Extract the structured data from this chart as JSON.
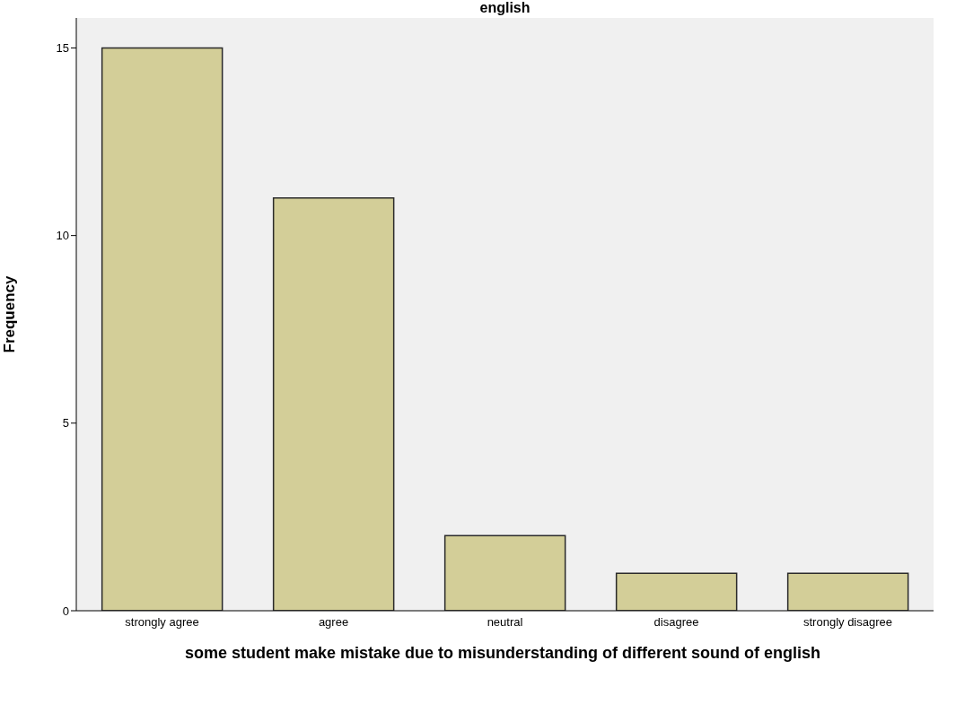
{
  "chart_data": {
    "type": "bar",
    "title": "english",
    "xlabel": "some student make mistake due to misunderstanding of different sound of english",
    "ylabel": "Frequency",
    "categories": [
      "strongly agree",
      "agree",
      "neutral",
      "disagree",
      "strongly disagree"
    ],
    "values": [
      15,
      11,
      2,
      1,
      1
    ],
    "color": "#d3ce98",
    "ylim": [
      0,
      15.8
    ],
    "yticks": [
      0,
      5,
      10,
      15
    ],
    "legend": false
  }
}
